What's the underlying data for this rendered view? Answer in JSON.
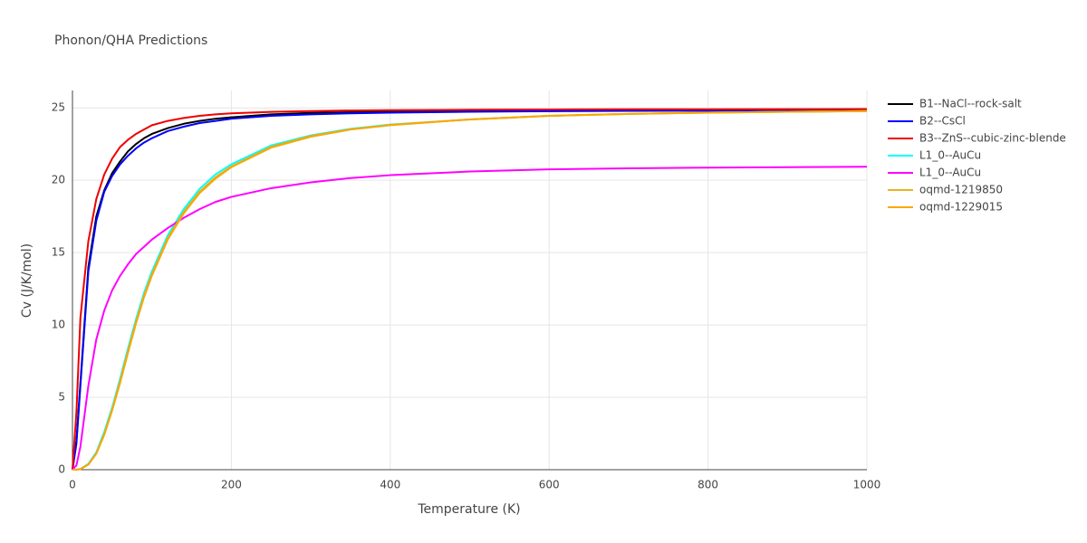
{
  "chart_data": {
    "type": "line",
    "title": "Phonon/QHA Predictions",
    "x_label": "Temperature (K)",
    "y_label": "Cv (J/K/mol)",
    "x": [
      0,
      5,
      10,
      20,
      30,
      40,
      50,
      60,
      70,
      80,
      90,
      100,
      120,
      140,
      160,
      180,
      200,
      250,
      300,
      350,
      400,
      500,
      600,
      700,
      800,
      900,
      1000
    ],
    "xlim": [
      0,
      1000
    ],
    "xticks": [
      0,
      200,
      400,
      600,
      800,
      1000
    ],
    "ylim": [
      0,
      26.2
    ],
    "yticks": [
      0,
      5,
      10,
      15,
      20,
      25
    ],
    "grid": true,
    "legend_position": "right",
    "series": [
      {
        "name": "B1--NaCl--rock-salt",
        "color": "#000000",
        "values": [
          0,
          2,
          6,
          14,
          17.5,
          19.3,
          20.5,
          21.3,
          22,
          22.5,
          22.9,
          23.2,
          23.6,
          23.9,
          24.1,
          24.25,
          24.35,
          24.55,
          24.65,
          24.7,
          24.75,
          24.8,
          24.83,
          24.85,
          24.86,
          24.87,
          24.88
        ]
      },
      {
        "name": "B2--CsCl",
        "color": "#0000ff",
        "values": [
          0,
          1.8,
          5.8,
          13.7,
          17.2,
          19.2,
          20.3,
          21.1,
          21.7,
          22.2,
          22.6,
          22.9,
          23.4,
          23.7,
          23.95,
          24.1,
          24.25,
          24.45,
          24.55,
          24.62,
          24.67,
          24.73,
          24.77,
          24.79,
          24.8,
          24.81,
          24.82
        ]
      },
      {
        "name": "B3--ZnS--cubic-zinc-blende",
        "color": "#ee0000",
        "values": [
          0,
          4,
          10.5,
          15.8,
          18.7,
          20.4,
          21.5,
          22.3,
          22.8,
          23.2,
          23.5,
          23.8,
          24.1,
          24.3,
          24.45,
          24.55,
          24.62,
          24.72,
          24.78,
          24.82,
          24.84,
          24.87,
          24.89,
          24.9,
          24.9,
          24.91,
          24.92
        ]
      },
      {
        "name": "L1_0--AuCu",
        "color": "#00ffff",
        "values": [
          0,
          0,
          0.05,
          0.4,
          1.2,
          2.6,
          4.3,
          6.3,
          8.4,
          10.4,
          12.2,
          13.7,
          16.2,
          18,
          19.4,
          20.4,
          21.1,
          22.4,
          23.1,
          23.55,
          23.85,
          24.2,
          24.45,
          24.58,
          24.67,
          24.73,
          24.78
        ]
      },
      {
        "name": "L1_0--AuCu",
        "color": "#ff00ff",
        "values": [
          0,
          0.3,
          1.6,
          5.8,
          9,
          11,
          12.4,
          13.4,
          14.2,
          14.9,
          15.4,
          15.9,
          16.7,
          17.4,
          18,
          18.5,
          18.85,
          19.45,
          19.85,
          20.15,
          20.35,
          20.6,
          20.75,
          20.82,
          20.87,
          20.9,
          20.93
        ]
      },
      {
        "name": "oqmd-1219850",
        "color": "#e6b422",
        "values": [
          0,
          0,
          0.04,
          0.35,
          1.1,
          2.4,
          4.1,
          6,
          8.1,
          10.1,
          11.9,
          13.4,
          15.9,
          17.7,
          19.1,
          20.1,
          20.9,
          22.25,
          23,
          23.5,
          23.8,
          24.2,
          24.45,
          24.58,
          24.67,
          24.73,
          24.78
        ]
      },
      {
        "name": "oqmd-1229015",
        "color": "#ffa500",
        "values": [
          0,
          0,
          0.04,
          0.36,
          1.12,
          2.45,
          4.15,
          6.1,
          8.2,
          10.2,
          12,
          13.5,
          16,
          17.8,
          19.2,
          20.2,
          20.95,
          22.3,
          23.05,
          23.52,
          23.82,
          24.2,
          24.45,
          24.58,
          24.67,
          24.73,
          24.78
        ]
      }
    ]
  }
}
